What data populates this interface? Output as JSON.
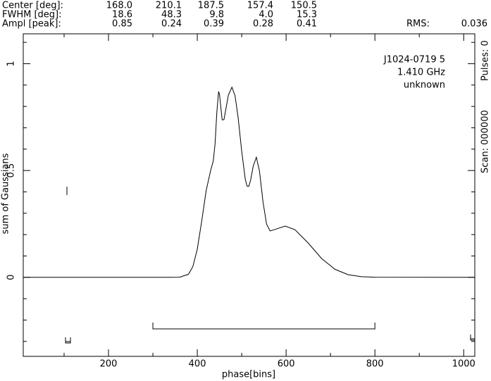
{
  "header": {
    "rows": [
      {
        "label": "Center [deg]:",
        "values": [
          "168.0",
          "210.1",
          "187.5",
          "157.4",
          "150.5"
        ]
      },
      {
        "label": "FWHM [deg]:",
        "values": [
          "18.6",
          "48.3",
          "9.8",
          "4.0",
          "15.3"
        ]
      },
      {
        "label": "Ampl [peak]:",
        "values": [
          "0.85",
          "0.24",
          "0.39",
          "0.28",
          "0.41"
        ]
      }
    ],
    "rms_label": "RMS:",
    "rms": 0.036
  },
  "chart_data": {
    "type": "line",
    "annotations": [
      "J1024-0719 5",
      "1.410 GHz",
      "unknown"
    ],
    "side_texts": [
      "Pulses: 0",
      "Scan: 000000"
    ],
    "xlabel": "phase[bins]",
    "ylabel": "sum of Gaussians",
    "x": [
      8,
      340,
      360,
      380,
      390,
      400,
      410,
      420,
      430,
      436,
      440,
      444,
      448,
      450,
      452,
      456,
      460,
      465,
      470,
      478,
      485,
      492,
      500,
      508,
      512,
      516,
      520,
      526,
      533,
      540,
      548,
      556,
      564,
      575,
      598,
      620,
      650,
      680,
      710,
      740,
      770,
      800,
      1024
    ],
    "values": [
      0,
      0,
      0.0005,
      0.014,
      0.05,
      0.132,
      0.264,
      0.406,
      0.5,
      0.545,
      0.624,
      0.773,
      0.87,
      0.857,
      0.815,
      0.737,
      0.738,
      0.795,
      0.853,
      0.89,
      0.85,
      0.747,
      0.591,
      0.46,
      0.427,
      0.426,
      0.454,
      0.521,
      0.562,
      0.498,
      0.353,
      0.249,
      0.217,
      0.224,
      0.24,
      0.223,
      0.16,
      0.088,
      0.0375,
      0.012,
      0.003,
      0.0006,
      0
    ],
    "color": "#000000",
    "onpulse": [
      300,
      800
    ],
    "xlim": [
      8,
      1025
    ],
    "ylim": [
      -0.37,
      1.14
    ],
    "xticks": [
      200,
      400,
      600,
      800,
      1000
    ],
    "xminorticks": [
      100,
      300,
      500,
      700,
      900
    ],
    "yticks": [
      0,
      0.5,
      1
    ],
    "yminorticks": [
      -0.3,
      -0.2,
      -0.1,
      0.1,
      0.2,
      0.3,
      0.4,
      0.6,
      0.7,
      0.8,
      0.9,
      1.1
    ]
  }
}
